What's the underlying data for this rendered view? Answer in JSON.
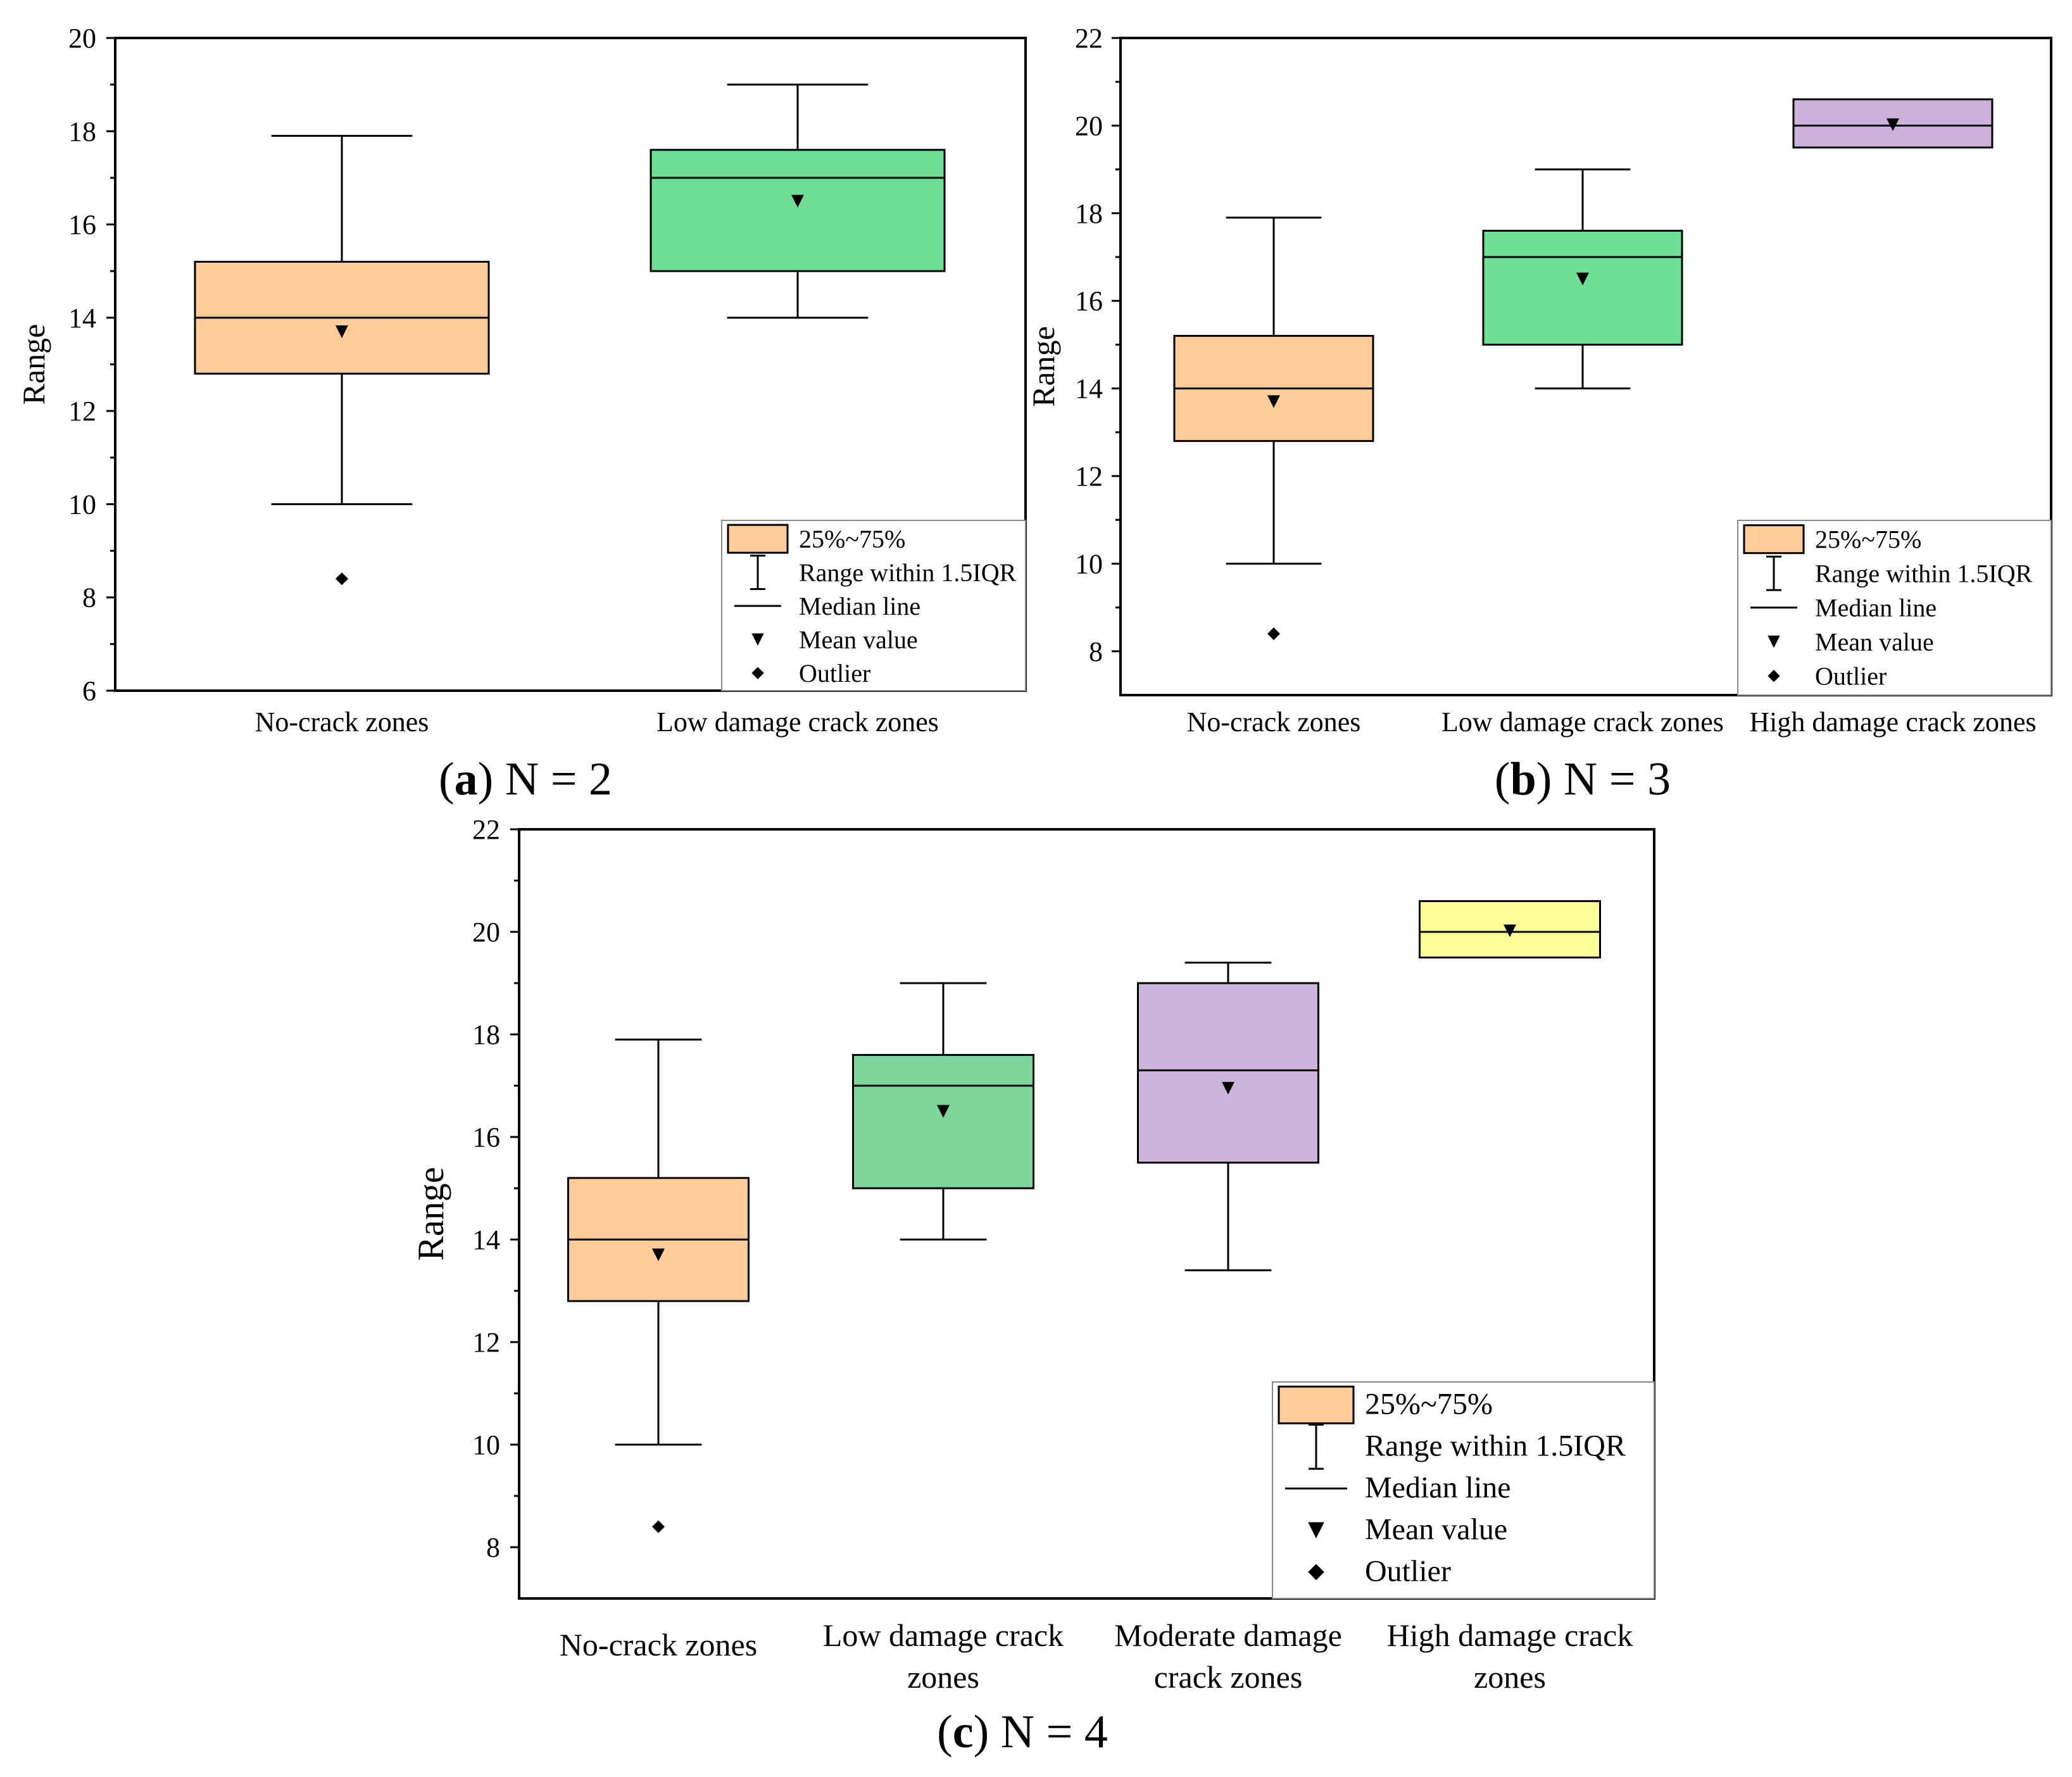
{
  "colors": {
    "no_crack": "#FFCC99",
    "low_damage": "#6FDF96",
    "low_damage_c": "#7DD69A",
    "moderate_damage": "#CDB4DA",
    "high_damage_b": "#CDB0DC",
    "high_damage_c": "#FFFF99",
    "axis": "#000000"
  },
  "legend": {
    "box": "25%~75%",
    "whisker": "Range within 1.5IQR",
    "median": "Median line",
    "mean": "Mean value",
    "outlier": "Outlier"
  },
  "chart_data": [
    {
      "id": "a",
      "type": "box",
      "caption_letter": "a",
      "caption_rest": "N = 2",
      "xlabel": "",
      "ylabel": "Range",
      "ylim": [
        6,
        20
      ],
      "yticks": [
        6,
        8,
        10,
        12,
        14,
        16,
        18,
        20
      ],
      "categories": [
        "No-crack zones",
        "Low damage crack zones"
      ],
      "boxes": [
        {
          "category": "No-crack zones",
          "color_key": "no_crack",
          "whisker_low": 10,
          "q1": 12.8,
          "median": 14,
          "q3": 15.2,
          "whisker_high": 17.9,
          "mean": 13.7,
          "outliers": [
            8.4
          ]
        },
        {
          "category": "Low damage crack zones",
          "color_key": "low_damage",
          "whisker_low": 14,
          "q1": 15,
          "median": 17,
          "q3": 17.6,
          "whisker_high": 19,
          "mean": 16.5,
          "outliers": []
        }
      ]
    },
    {
      "id": "b",
      "type": "box",
      "caption_letter": "b",
      "caption_rest": "N = 3",
      "xlabel": "",
      "ylabel": "Range",
      "ylim": [
        7,
        22
      ],
      "yticks": [
        8,
        10,
        12,
        14,
        16,
        18,
        20,
        22
      ],
      "categories": [
        "No-crack zones",
        "Low damage crack zones",
        "High damage crack zones"
      ],
      "boxes": [
        {
          "category": "No-crack zones",
          "color_key": "no_crack",
          "whisker_low": 10,
          "q1": 12.8,
          "median": 14,
          "q3": 15.2,
          "whisker_high": 17.9,
          "mean": 13.7,
          "outliers": [
            8.4
          ]
        },
        {
          "category": "Low damage crack zones",
          "color_key": "low_damage",
          "whisker_low": 14,
          "q1": 15,
          "median": 17,
          "q3": 17.6,
          "whisker_high": 19,
          "mean": 16.5,
          "outliers": []
        },
        {
          "category": "High damage crack zones",
          "color_key": "high_damage_b",
          "whisker_low": 19.5,
          "q1": 19.5,
          "median": 20,
          "q3": 20.6,
          "whisker_high": 20.6,
          "mean": 20.02,
          "outliers": []
        }
      ]
    },
    {
      "id": "c",
      "type": "box",
      "caption_letter": "c",
      "caption_rest": "N = 4",
      "xlabel": "",
      "ylabel": "Range",
      "ylim": [
        7,
        22
      ],
      "yticks": [
        8,
        10,
        12,
        14,
        16,
        18,
        20,
        22
      ],
      "categories": [
        [
          "No-crack zones"
        ],
        [
          "Low damage crack",
          "zones"
        ],
        [
          "Moderate damage",
          "crack zones"
        ],
        [
          "High damage crack",
          "zones"
        ]
      ],
      "boxes": [
        {
          "category": "No-crack zones",
          "color_key": "no_crack",
          "whisker_low": 10,
          "q1": 12.8,
          "median": 14,
          "q3": 15.2,
          "whisker_high": 17.9,
          "mean": 13.7,
          "outliers": [
            8.4
          ]
        },
        {
          "category": "Low damage crack zones",
          "color_key": "low_damage_c",
          "whisker_low": 14,
          "q1": 15,
          "median": 17,
          "q3": 17.6,
          "whisker_high": 19,
          "mean": 16.5,
          "outliers": []
        },
        {
          "category": "Moderate damage crack zones",
          "color_key": "moderate_damage",
          "whisker_low": 13.4,
          "q1": 15.5,
          "median": 17.3,
          "q3": 19,
          "whisker_high": 19.4,
          "mean": 16.95,
          "outliers": []
        },
        {
          "category": "High damage crack zones",
          "color_key": "high_damage_c",
          "whisker_low": 19.5,
          "q1": 19.5,
          "median": 20,
          "q3": 20.6,
          "whisker_high": 20.6,
          "mean": 20.02,
          "outliers": []
        }
      ]
    }
  ]
}
